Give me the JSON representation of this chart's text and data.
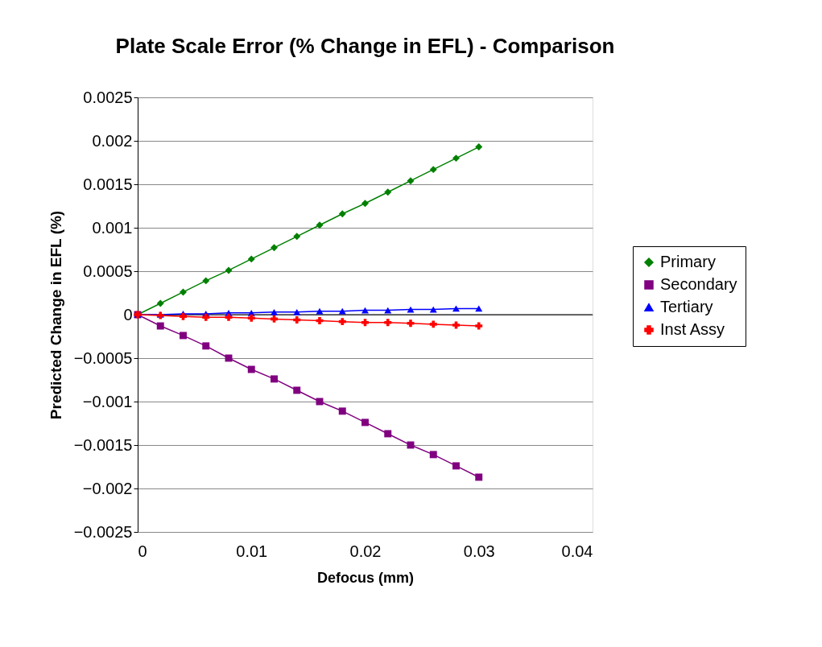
{
  "chart_data": {
    "type": "line",
    "title": "Plate Scale Error (% Change in EFL) - Comparison",
    "xlabel": "Defocus (mm)",
    "ylabel": "Predicted Change in EFL  (%)",
    "x": [
      0,
      0.002,
      0.004,
      0.006,
      0.008,
      0.01,
      0.012,
      0.014,
      0.016,
      0.018,
      0.02,
      0.022,
      0.024,
      0.026,
      0.028,
      0.03
    ],
    "series": [
      {
        "name": "Primary",
        "color": "#008000",
        "marker": "diamond",
        "values": [
          0,
          0.00013,
          0.00026,
          0.00039,
          0.00051,
          0.00064,
          0.00077,
          0.0009,
          0.00103,
          0.00116,
          0.00128,
          0.00141,
          0.00154,
          0.00167,
          0.0018,
          0.00193
        ]
      },
      {
        "name": "Secondary",
        "color": "#800080",
        "marker": "square",
        "values": [
          0,
          -0.00013,
          -0.00024,
          -0.00036,
          -0.0005,
          -0.00063,
          -0.00074,
          -0.00087,
          -0.001,
          -0.00111,
          -0.00124,
          -0.00137,
          -0.0015,
          -0.00161,
          -0.00174,
          -0.00187
        ]
      },
      {
        "name": "Tertiary",
        "color": "#0000ff",
        "marker": "triangle",
        "values": [
          0,
          0,
          1e-05,
          1e-05,
          2e-05,
          2e-05,
          3e-05,
          3e-05,
          4e-05,
          4e-05,
          5e-05,
          5e-05,
          6e-05,
          6e-05,
          7e-05,
          7e-05
        ]
      },
      {
        "name": "Inst Assy",
        "color": "#ff0000",
        "marker": "cross",
        "values": [
          0,
          -1e-05,
          -2e-05,
          -3e-05,
          -3e-05,
          -4e-05,
          -5e-05,
          -6e-05,
          -7e-05,
          -8e-05,
          -9e-05,
          -9e-05,
          -0.0001,
          -0.00011,
          -0.00012,
          -0.00013
        ]
      }
    ],
    "xlim": [
      0,
      0.04
    ],
    "xticks": [
      0,
      0.01,
      0.02,
      0.03,
      0.04
    ],
    "ylim": [
      -0.0025,
      0.0025
    ],
    "yticks": [
      -0.0025,
      -0.002,
      -0.0015,
      -0.001,
      -0.0005,
      0,
      0.0005,
      0.001,
      0.0015,
      0.002,
      0.0025
    ],
    "ref_lines": [
      {
        "axis": "y",
        "value": 0,
        "color": "#000000"
      }
    ],
    "grid": "y",
    "legend": "right",
    "line_style": "solid"
  }
}
